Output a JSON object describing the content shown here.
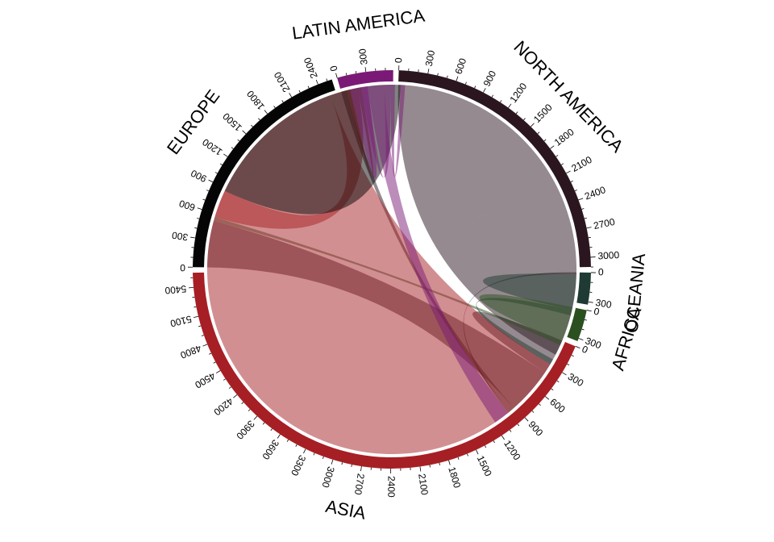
{
  "chart_data": {
    "type": "chord",
    "title": "",
    "sectors": [
      {
        "name": "NORTH AMERICA",
        "total": 3100,
        "color": "#2b1620",
        "ticks": [
          0,
          300,
          600,
          900,
          1200,
          1500,
          1800,
          2100,
          2400,
          2700,
          3000
        ]
      },
      {
        "name": "OCEANIA",
        "total": 330,
        "color": "#1f3a32",
        "ticks": [
          0,
          300
        ]
      },
      {
        "name": "AFRICA",
        "total": 330,
        "color": "#2b5020",
        "ticks": [
          0,
          300
        ]
      },
      {
        "name": "ASIA",
        "total": 5550,
        "color": "#a61f24",
        "ticks": [
          0,
          300,
          600,
          900,
          1200,
          1500,
          1800,
          2100,
          2400,
          2700,
          3000,
          3300,
          3600,
          3900,
          4200,
          4500,
          4800,
          5100,
          5400
        ]
      },
      {
        "name": "EUROPE",
        "total": 2550,
        "color": "#050505",
        "ticks": [
          0,
          300,
          600,
          900,
          1200,
          1500,
          1800,
          2100,
          2400
        ]
      },
      {
        "name": "LATIN AMERICA",
        "total": 580,
        "color": "#7a1a76",
        "ticks": [
          0,
          300
        ]
      }
    ],
    "flows": [
      {
        "from": "NORTH AMERICA",
        "to": "NORTH AMERICA",
        "value": 2050
      },
      {
        "from": "NORTH AMERICA",
        "to": "ASIA",
        "value": 230
      },
      {
        "from": "NORTH AMERICA",
        "to": "EUROPE",
        "value": 520
      },
      {
        "from": "NORTH AMERICA",
        "to": "LATIN AMERICA",
        "value": 60
      },
      {
        "from": "NORTH AMERICA",
        "to": "OCEANIA",
        "value": 20
      },
      {
        "from": "OCEANIA",
        "to": "OCEANIA",
        "value": 200
      },
      {
        "from": "OCEANIA",
        "to": "ASIA",
        "value": 60
      },
      {
        "from": "AFRICA",
        "to": "AFRICA",
        "value": 200
      },
      {
        "from": "AFRICA",
        "to": "EUROPE",
        "value": 40
      },
      {
        "from": "ASIA",
        "to": "ASIA",
        "value": 3900
      },
      {
        "from": "ASIA",
        "to": "EUROPE",
        "value": 310
      },
      {
        "from": "ASIA",
        "to": "LATIN AMERICA",
        "value": 40
      },
      {
        "from": "EUROPE",
        "to": "EUROPE",
        "value": 1200
      },
      {
        "from": "LATIN AMERICA",
        "to": "LATIN AMERICA",
        "value": 100
      },
      {
        "from": "LATIN AMERICA",
        "to": "NORTH AMERICA",
        "value": 180
      },
      {
        "from": "LATIN AMERICA",
        "to": "ASIA",
        "value": 70
      },
      {
        "from": "LATIN AMERICA",
        "to": "EUROPE",
        "value": 50
      }
    ]
  }
}
